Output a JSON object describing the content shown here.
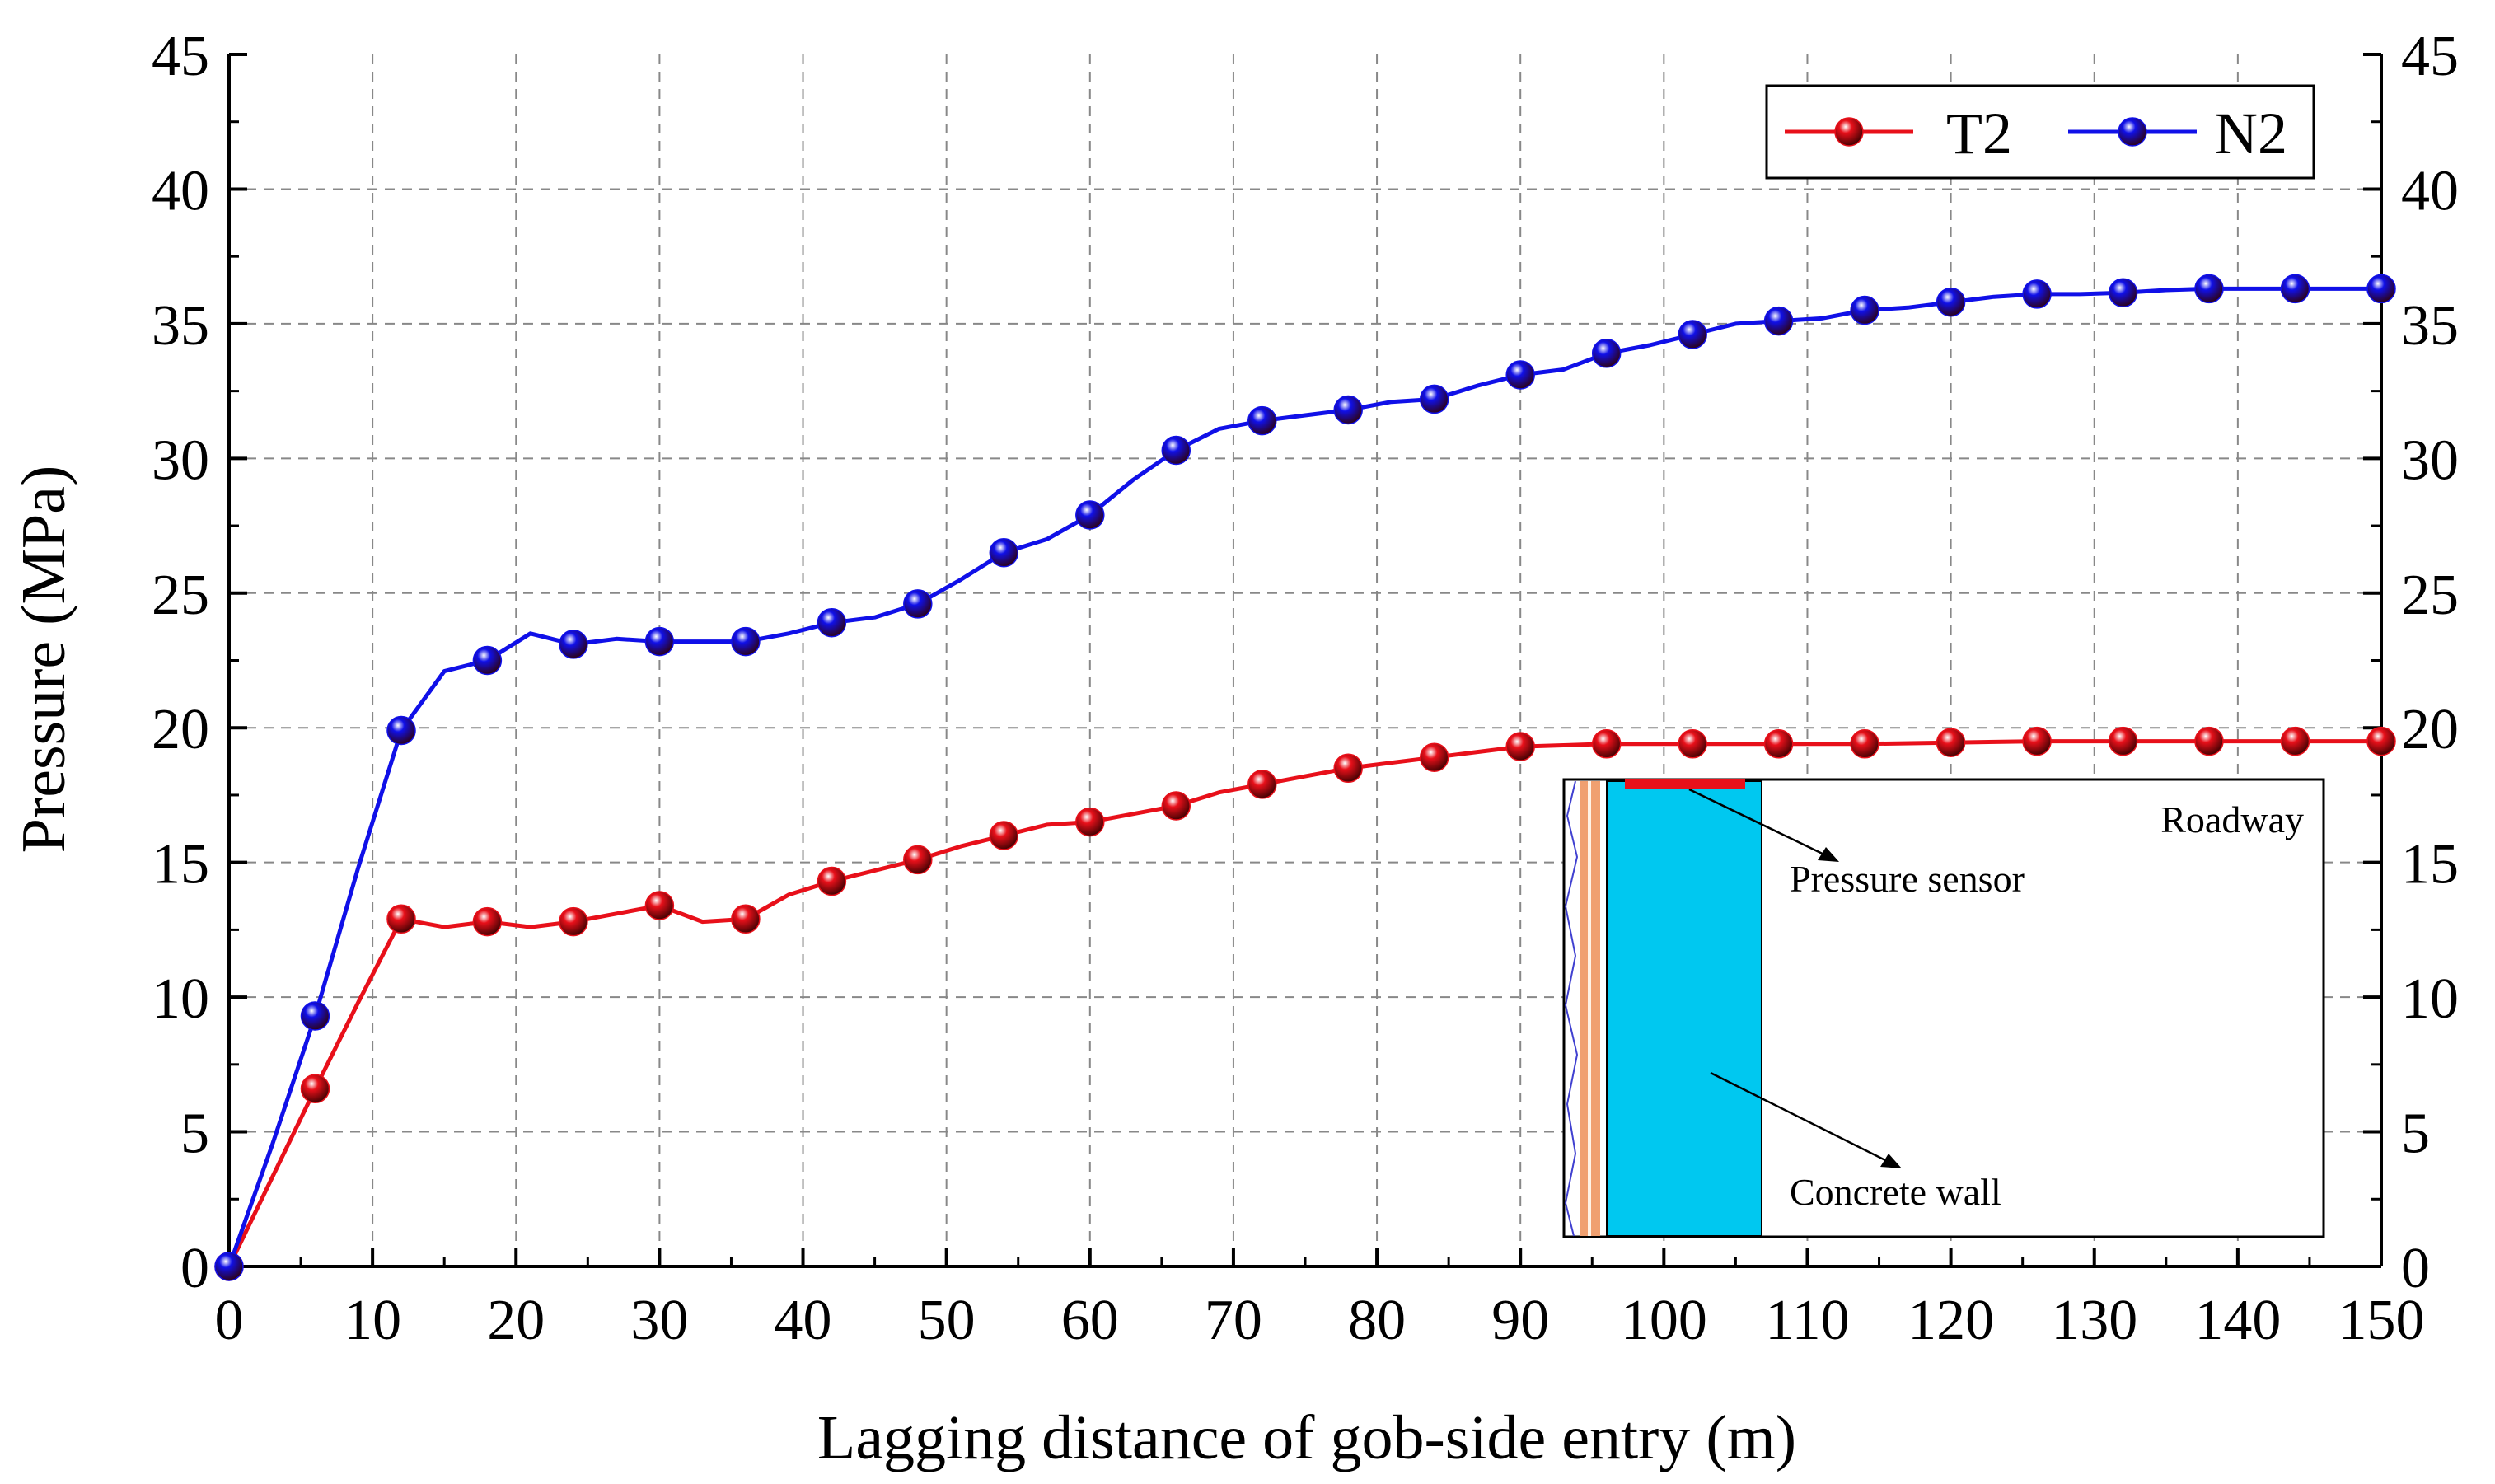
{
  "chart_data": {
    "type": "line",
    "xlabel": "Lagging distance of gob-side entry (m)",
    "ylabel": "Pressure (MPa)",
    "xlim": [
      0,
      150
    ],
    "ylim": [
      0,
      45
    ],
    "x_ticks": [
      "0",
      "10",
      "20",
      "30",
      "40",
      "50",
      "60",
      "70",
      "80",
      "90",
      "100",
      "110",
      "120",
      "130",
      "140",
      "150"
    ],
    "y_ticks": [
      "0",
      "5",
      "10",
      "15",
      "20",
      "25",
      "30",
      "35",
      "40",
      "45"
    ],
    "grid": true,
    "legend_position": "top-right",
    "series": [
      {
        "name": "T2",
        "color": "#e8101a",
        "curve": [
          [
            0,
            0
          ],
          [
            6,
            6.6
          ],
          [
            9,
            9.8
          ],
          [
            12,
            12.9
          ],
          [
            15,
            12.6
          ],
          [
            18,
            12.8
          ],
          [
            21,
            12.6
          ],
          [
            24,
            12.8
          ],
          [
            27,
            13.1
          ],
          [
            30,
            13.4
          ],
          [
            33,
            12.8
          ],
          [
            36,
            12.9
          ],
          [
            39,
            13.8
          ],
          [
            42,
            14.3
          ],
          [
            45,
            14.7
          ],
          [
            48,
            15.1
          ],
          [
            51,
            15.6
          ],
          [
            54,
            16.0
          ],
          [
            57,
            16.4
          ],
          [
            60,
            16.5
          ],
          [
            63,
            16.8
          ],
          [
            66,
            17.1
          ],
          [
            69,
            17.6
          ],
          [
            72,
            17.9
          ],
          [
            75,
            18.2
          ],
          [
            78,
            18.5
          ],
          [
            81,
            18.7
          ],
          [
            84,
            18.9
          ],
          [
            87,
            19.1
          ],
          [
            90,
            19.3
          ],
          [
            93,
            19.35
          ],
          [
            96,
            19.4
          ],
          [
            102,
            19.4
          ],
          [
            108,
            19.4
          ],
          [
            114,
            19.4
          ],
          [
            120,
            19.45
          ],
          [
            126,
            19.5
          ],
          [
            132,
            19.5
          ],
          [
            138,
            19.5
          ],
          [
            144,
            19.5
          ],
          [
            150,
            19.5
          ]
        ],
        "markers": [
          [
            0,
            0
          ],
          [
            6,
            6.6
          ],
          [
            12,
            12.9
          ],
          [
            18,
            12.8
          ],
          [
            24,
            12.8
          ],
          [
            30,
            13.4
          ],
          [
            36,
            12.9
          ],
          [
            42,
            14.3
          ],
          [
            48,
            15.1
          ],
          [
            54,
            16.0
          ],
          [
            60,
            16.5
          ],
          [
            66,
            17.1
          ],
          [
            72,
            17.9
          ],
          [
            78,
            18.5
          ],
          [
            84,
            18.9
          ],
          [
            90,
            19.3
          ],
          [
            96,
            19.4
          ],
          [
            102,
            19.4
          ],
          [
            108,
            19.4
          ],
          [
            114,
            19.4
          ],
          [
            120,
            19.45
          ],
          [
            126,
            19.5
          ],
          [
            132,
            19.5
          ],
          [
            138,
            19.5
          ],
          [
            144,
            19.5
          ],
          [
            150,
            19.5
          ]
        ]
      },
      {
        "name": "N2",
        "color": "#1010e8",
        "curve": [
          [
            0,
            0
          ],
          [
            3,
            4.5
          ],
          [
            6,
            9.3
          ],
          [
            9,
            14.8
          ],
          [
            12,
            19.9
          ],
          [
            15,
            22.1
          ],
          [
            18,
            22.5
          ],
          [
            21,
            23.5
          ],
          [
            24,
            23.1
          ],
          [
            27,
            23.3
          ],
          [
            30,
            23.2
          ],
          [
            33,
            23.2
          ],
          [
            36,
            23.2
          ],
          [
            39,
            23.5
          ],
          [
            42,
            23.9
          ],
          [
            45,
            24.1
          ],
          [
            48,
            24.6
          ],
          [
            51,
            25.5
          ],
          [
            54,
            26.5
          ],
          [
            57,
            27.0
          ],
          [
            60,
            27.9
          ],
          [
            63,
            29.2
          ],
          [
            66,
            30.3
          ],
          [
            69,
            31.1
          ],
          [
            72,
            31.4
          ],
          [
            75,
            31.6
          ],
          [
            78,
            31.8
          ],
          [
            81,
            32.1
          ],
          [
            84,
            32.2
          ],
          [
            87,
            32.7
          ],
          [
            90,
            33.1
          ],
          [
            93,
            33.3
          ],
          [
            96,
            33.9
          ],
          [
            99,
            34.2
          ],
          [
            102,
            34.6
          ],
          [
            105,
            35.0
          ],
          [
            108,
            35.1
          ],
          [
            111,
            35.2
          ],
          [
            114,
            35.5
          ],
          [
            117,
            35.6
          ],
          [
            120,
            35.8
          ],
          [
            123,
            36.0
          ],
          [
            126,
            36.1
          ],
          [
            129,
            36.1
          ],
          [
            132,
            36.15
          ],
          [
            135,
            36.25
          ],
          [
            138,
            36.3
          ],
          [
            141,
            36.3
          ],
          [
            144,
            36.3
          ],
          [
            147,
            36.3
          ],
          [
            150,
            36.3
          ]
        ],
        "markers": [
          [
            0,
            0
          ],
          [
            6,
            9.3
          ],
          [
            12,
            19.9
          ],
          [
            18,
            22.5
          ],
          [
            24,
            23.1
          ],
          [
            30,
            23.2
          ],
          [
            36,
            23.2
          ],
          [
            42,
            23.9
          ],
          [
            48,
            24.6
          ],
          [
            54,
            26.5
          ],
          [
            60,
            27.9
          ],
          [
            66,
            30.3
          ],
          [
            72,
            31.4
          ],
          [
            78,
            31.8
          ],
          [
            84,
            32.2
          ],
          [
            90,
            33.1
          ],
          [
            96,
            33.9
          ],
          [
            102,
            34.6
          ],
          [
            108,
            35.1
          ],
          [
            114,
            35.5
          ],
          [
            120,
            35.8
          ],
          [
            126,
            36.1
          ],
          [
            132,
            36.15
          ],
          [
            138,
            36.3
          ],
          [
            144,
            36.3
          ],
          [
            150,
            36.3
          ]
        ]
      }
    ],
    "inset": {
      "labels": {
        "roadway": "Roadway",
        "pressure_sensor": "Pressure sensor",
        "concrete_wall": "Concrete wall"
      },
      "colors": {
        "wall": "#00c8f0",
        "sensor": "#e8101a",
        "rock": "#f0a070"
      }
    }
  }
}
